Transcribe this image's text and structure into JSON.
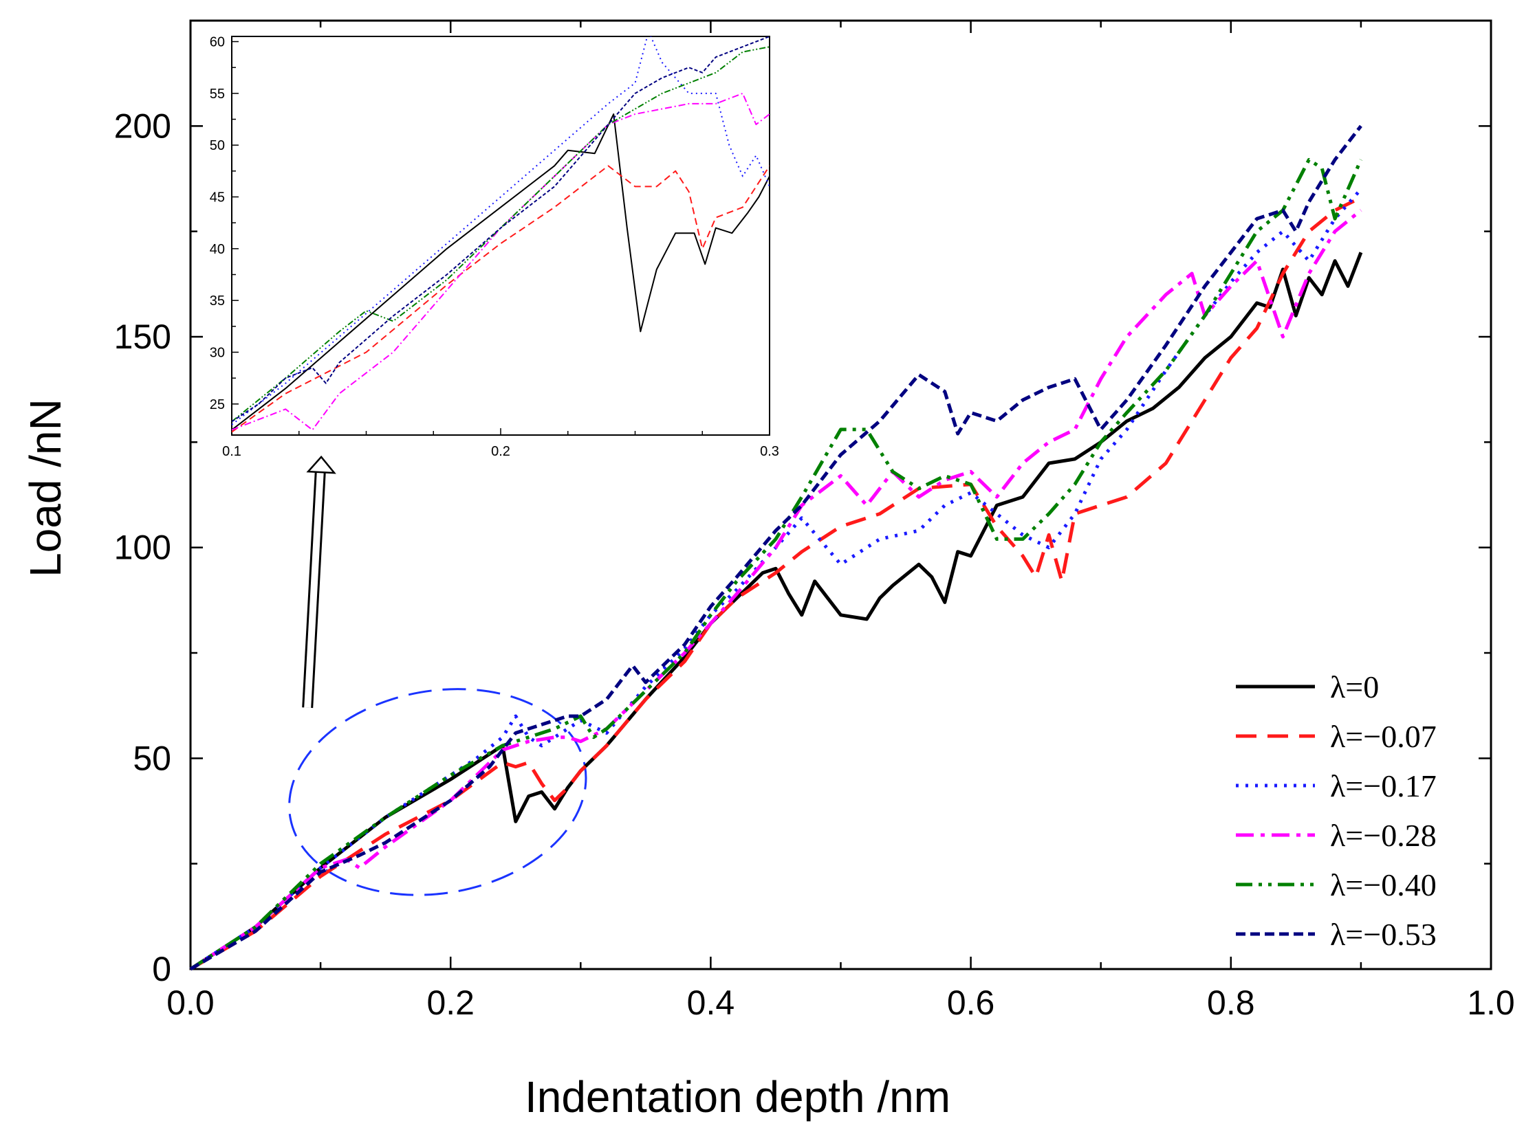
{
  "chart_data": {
    "type": "line",
    "title": "",
    "xlabel": "Indentation depth /nm",
    "ylabel": "Load /nN",
    "xlim": [
      0,
      1.0
    ],
    "ylim": [
      0,
      225
    ],
    "xticks": [
      "0.0",
      "0.2",
      "0.4",
      "0.6",
      "0.8",
      "1.0"
    ],
    "yticks": [
      "0",
      "50",
      "100",
      "150",
      "200"
    ],
    "grid": false,
    "legend_position": "bottom-right",
    "colors": {
      "lambda_0": "#000000",
      "lambda_007": "#ff1a1a",
      "lambda_017": "#1a1aff",
      "lambda_028": "#ff00ff",
      "lambda_040": "#008000",
      "lambda_053": "#000080",
      "ellipse": "#1a33ff"
    },
    "series": [
      {
        "name": "λ=0",
        "label": "λ=0",
        "x": [
          0,
          0.05,
          0.1,
          0.15,
          0.2,
          0.23,
          0.24,
          0.25,
          0.26,
          0.27,
          0.28,
          0.29,
          0.3,
          0.32,
          0.35,
          0.38,
          0.4,
          0.42,
          0.44,
          0.45,
          0.46,
          0.47,
          0.48,
          0.49,
          0.5,
          0.52,
          0.53,
          0.54,
          0.56,
          0.57,
          0.58,
          0.59,
          0.6,
          0.62,
          0.64,
          0.66,
          0.68,
          0.7,
          0.72,
          0.74,
          0.76,
          0.78,
          0.8,
          0.82,
          0.83,
          0.84,
          0.85,
          0.86,
          0.87,
          0.88,
          0.89,
          0.9
        ],
        "y": [
          0,
          10,
          24,
          36,
          45,
          51,
          53,
          35,
          41,
          42,
          38,
          43,
          47,
          53,
          64,
          74,
          82,
          88,
          94,
          95,
          89,
          84,
          92,
          88,
          84,
          83,
          88,
          91,
          96,
          93,
          87,
          99,
          98,
          110,
          112,
          120,
          121,
          125,
          130,
          133,
          138,
          145,
          150,
          158,
          157,
          166,
          155,
          164,
          160,
          168,
          162,
          170
        ]
      },
      {
        "name": "λ=-0.07",
        "label": "λ=−0.07",
        "x": [
          0,
          0.05,
          0.1,
          0.15,
          0.2,
          0.24,
          0.25,
          0.26,
          0.27,
          0.28,
          0.29,
          0.3,
          0.32,
          0.35,
          0.38,
          0.4,
          0.42,
          0.45,
          0.47,
          0.5,
          0.53,
          0.56,
          0.6,
          0.62,
          0.64,
          0.65,
          0.66,
          0.67,
          0.68,
          0.7,
          0.72,
          0.75,
          0.78,
          0.8,
          0.82,
          0.84,
          0.86,
          0.88,
          0.9
        ],
        "y": [
          0,
          9,
          22,
          32,
          40,
          49,
          48,
          49,
          44,
          40,
          43,
          47,
          53,
          64,
          73,
          82,
          88,
          94,
          99,
          105,
          108,
          114,
          115,
          105,
          98,
          93,
          103,
          92,
          108,
          110,
          112,
          120,
          135,
          145,
          152,
          165,
          175,
          180,
          183
        ]
      },
      {
        "name": "λ=-0.17",
        "label": "λ=−0.17",
        "x": [
          0,
          0.05,
          0.1,
          0.15,
          0.2,
          0.22,
          0.24,
          0.25,
          0.26,
          0.27,
          0.28,
          0.3,
          0.32,
          0.35,
          0.38,
          0.4,
          0.42,
          0.45,
          0.47,
          0.5,
          0.53,
          0.56,
          0.58,
          0.6,
          0.62,
          0.64,
          0.66,
          0.68,
          0.7,
          0.72,
          0.75,
          0.78,
          0.8,
          0.82,
          0.84,
          0.86,
          0.88,
          0.9
        ],
        "y": [
          0,
          10,
          24,
          36,
          46,
          50,
          55,
          60,
          55,
          53,
          55,
          59,
          56,
          67,
          76,
          84,
          90,
          100,
          107,
          96,
          102,
          104,
          110,
          113,
          108,
          103,
          100,
          108,
          121,
          128,
          142,
          155,
          163,
          170,
          175,
          168,
          178,
          185
        ]
      },
      {
        "name": "λ=-0.28",
        "label": "λ=−0.28",
        "x": [
          0,
          0.05,
          0.1,
          0.12,
          0.13,
          0.15,
          0.2,
          0.24,
          0.26,
          0.28,
          0.29,
          0.3,
          0.32,
          0.35,
          0.38,
          0.4,
          0.42,
          0.45,
          0.47,
          0.5,
          0.52,
          0.54,
          0.56,
          0.58,
          0.6,
          0.62,
          0.64,
          0.66,
          0.68,
          0.7,
          0.72,
          0.75,
          0.77,
          0.78,
          0.8,
          0.82,
          0.84,
          0.86,
          0.88,
          0.9
        ],
        "y": [
          0,
          10,
          24,
          26,
          24,
          29,
          40,
          52,
          54,
          55,
          55,
          54,
          57,
          66,
          75,
          82,
          89,
          100,
          110,
          117,
          110,
          118,
          112,
          116,
          118,
          112,
          120,
          125,
          128,
          140,
          150,
          160,
          165,
          155,
          162,
          168,
          150,
          165,
          175,
          180
        ]
      },
      {
        "name": "λ=-0.40",
        "label": "λ=−0.40",
        "x": [
          0,
          0.05,
          0.1,
          0.15,
          0.2,
          0.24,
          0.26,
          0.28,
          0.3,
          0.31,
          0.32,
          0.35,
          0.38,
          0.4,
          0.42,
          0.45,
          0.47,
          0.5,
          0.52,
          0.54,
          0.56,
          0.58,
          0.6,
          0.62,
          0.64,
          0.66,
          0.68,
          0.7,
          0.72,
          0.75,
          0.78,
          0.8,
          0.82,
          0.84,
          0.86,
          0.87,
          0.88,
          0.9
        ],
        "y": [
          0,
          10,
          25,
          36,
          46,
          53,
          55,
          57,
          60,
          55,
          57,
          66,
          75,
          84,
          92,
          102,
          112,
          128,
          128,
          118,
          114,
          117,
          115,
          102,
          102,
          108,
          115,
          125,
          132,
          142,
          155,
          165,
          175,
          180,
          192,
          190,
          178,
          192
        ]
      },
      {
        "name": "λ=-0.53",
        "label": "λ=−0.53",
        "x": [
          0,
          0.05,
          0.1,
          0.13,
          0.15,
          0.2,
          0.23,
          0.25,
          0.27,
          0.29,
          0.3,
          0.32,
          0.34,
          0.35,
          0.38,
          0.4,
          0.42,
          0.45,
          0.47,
          0.5,
          0.53,
          0.56,
          0.58,
          0.59,
          0.6,
          0.62,
          0.64,
          0.66,
          0.68,
          0.7,
          0.72,
          0.75,
          0.78,
          0.8,
          0.82,
          0.84,
          0.85,
          0.86,
          0.88,
          0.9
        ],
        "y": [
          0,
          9,
          23,
          27,
          30,
          40,
          48,
          56,
          58,
          60,
          60,
          64,
          72,
          68,
          77,
          86,
          93,
          104,
          110,
          122,
          130,
          141,
          137,
          127,
          132,
          130,
          135,
          138,
          140,
          128,
          135,
          148,
          162,
          170,
          178,
          180,
          175,
          182,
          192,
          200
        ]
      }
    ],
    "inset": {
      "xlim": [
        0.1,
        0.3
      ],
      "ylim": [
        22,
        60.5
      ],
      "xticks": [
        "0.1",
        "0.2",
        "0.3"
      ],
      "yticks": [
        "25",
        "30",
        "35",
        "40",
        "45",
        "50",
        "55",
        "60"
      ],
      "series": [
        {
          "name": "λ=0",
          "x": [
            0.1,
            0.12,
            0.14,
            0.16,
            0.18,
            0.2,
            0.22,
            0.225,
            0.235,
            0.242,
            0.247,
            0.252,
            0.258,
            0.265,
            0.272,
            0.276,
            0.28,
            0.286,
            0.292,
            0.296,
            0.3
          ],
          "y": [
            22.5,
            26.5,
            31,
            35.5,
            40,
            44,
            48,
            49.5,
            49.2,
            53,
            42,
            32,
            38,
            41.5,
            41.5,
            38.5,
            42,
            41.5,
            43.5,
            45,
            47
          ]
        },
        {
          "name": "λ=-0.07",
          "x": [
            0.1,
            0.12,
            0.15,
            0.18,
            0.2,
            0.22,
            0.24,
            0.25,
            0.258,
            0.265,
            0.27,
            0.275,
            0.28,
            0.29,
            0.3
          ],
          "y": [
            22.3,
            26,
            30,
            36.5,
            40.5,
            44,
            48,
            46,
            46,
            47.5,
            45.5,
            40,
            43,
            44,
            48
          ]
        },
        {
          "name": "λ=-0.17",
          "x": [
            0.1,
            0.12,
            0.14,
            0.16,
            0.18,
            0.2,
            0.22,
            0.24,
            0.25,
            0.255,
            0.26,
            0.27,
            0.28,
            0.285,
            0.29,
            0.295,
            0.3
          ],
          "y": [
            23,
            27,
            31.5,
            36,
            40.5,
            45,
            49.5,
            54,
            56,
            61,
            58,
            55,
            55,
            50,
            47,
            49,
            46
          ]
        },
        {
          "name": "λ=-0.28",
          "x": [
            0.1,
            0.12,
            0.13,
            0.14,
            0.16,
            0.18,
            0.2,
            0.22,
            0.24,
            0.25,
            0.26,
            0.27,
            0.28,
            0.29,
            0.295,
            0.3
          ],
          "y": [
            22.5,
            24.5,
            22.5,
            26,
            30,
            36,
            42,
            47,
            52,
            53,
            53.5,
            54,
            54,
            55,
            52,
            53
          ]
        },
        {
          "name": "λ=-0.40",
          "x": [
            0.1,
            0.12,
            0.14,
            0.15,
            0.16,
            0.18,
            0.2,
            0.22,
            0.24,
            0.26,
            0.28,
            0.29,
            0.3
          ],
          "y": [
            23.3,
            27.5,
            32,
            34,
            33,
            37,
            42,
            47,
            52,
            55,
            57,
            59,
            59.5
          ]
        },
        {
          "name": "λ=-0.53",
          "x": [
            0.1,
            0.11,
            0.12,
            0.13,
            0.135,
            0.14,
            0.16,
            0.18,
            0.2,
            0.22,
            0.24,
            0.25,
            0.26,
            0.27,
            0.275,
            0.28,
            0.29,
            0.3
          ],
          "y": [
            23.3,
            25,
            27.5,
            28.5,
            27,
            29,
            33.5,
            37.5,
            42,
            46,
            52,
            55,
            56.5,
            57.5,
            57,
            58.5,
            59.5,
            60.5
          ]
        }
      ]
    }
  }
}
